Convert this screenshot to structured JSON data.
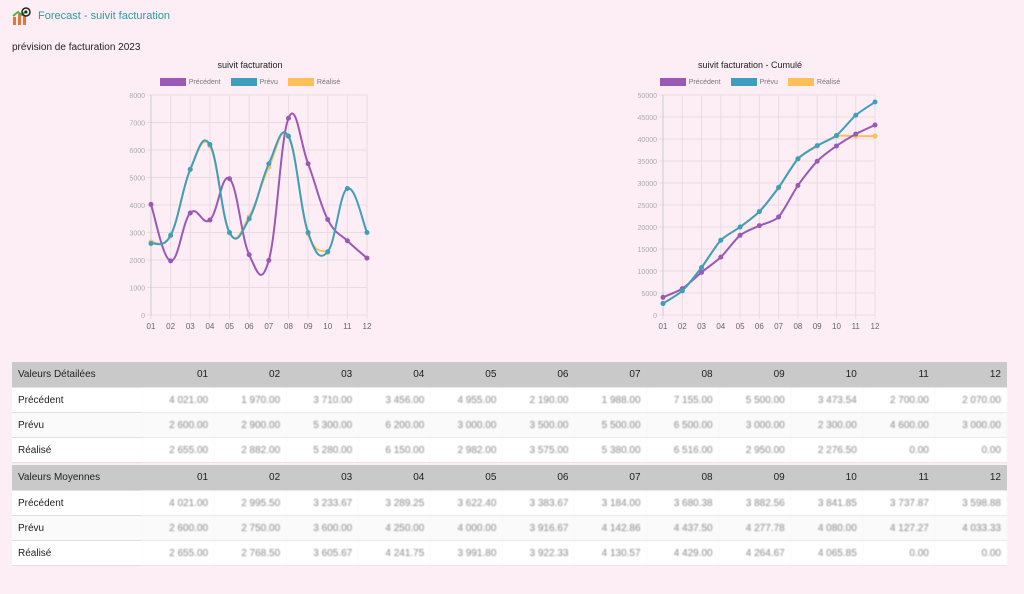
{
  "header": {
    "title": "Forecast - suivit facturation",
    "subtitle": "prévision de facturation 2023"
  },
  "colors": {
    "precedent": "#9b59b6",
    "prevu": "#3e9fbd",
    "realise": "#fbc05a"
  },
  "chart_data": [
    {
      "type": "line",
      "title": "suivit facturation",
      "categories": [
        "01",
        "02",
        "03",
        "04",
        "05",
        "06",
        "07",
        "08",
        "09",
        "10",
        "11",
        "12"
      ],
      "ylim": [
        0,
        8000
      ],
      "yticks": [
        "0",
        "1000",
        "2000",
        "3000",
        "4000",
        "5000",
        "6000",
        "7000",
        "8000"
      ],
      "series": [
        {
          "name": "Précédent",
          "values": [
            4021,
            1970,
            3710,
            3456,
            4955,
            2190,
            1988,
            7155,
            5500,
            3473.54,
            2700,
            2070
          ]
        },
        {
          "name": "Prévu",
          "values": [
            2600,
            2900,
            5300,
            6200,
            3000,
            3500,
            5500,
            6500,
            3000,
            2300,
            4600,
            3000
          ]
        },
        {
          "name": "Réalisé",
          "values": [
            2655,
            2882,
            5280,
            6150,
            2982,
            3575,
            5380,
            6516,
            2950,
            2276.5,
            null,
            null
          ]
        }
      ]
    },
    {
      "type": "line",
      "title": "suivit facturation - Cumulé",
      "categories": [
        "01",
        "02",
        "03",
        "04",
        "05",
        "06",
        "07",
        "08",
        "09",
        "10",
        "11",
        "12"
      ],
      "ylim": [
        0,
        50000
      ],
      "yticks": [
        "0",
        "5000",
        "10000",
        "15000",
        "20000",
        "25000",
        "30000",
        "35000",
        "40000",
        "45000",
        "50000"
      ],
      "series": [
        {
          "name": "Précédent",
          "values": [
            4021,
            5991,
            9701,
            13157,
            18112,
            20302,
            22290,
            29445,
            34945,
            38418.54,
            41118.54,
            43188.54
          ]
        },
        {
          "name": "Prévu",
          "values": [
            2600,
            5500,
            10800,
            17000,
            20000,
            23500,
            29000,
            35500,
            38500,
            40800,
            45400,
            48400
          ]
        },
        {
          "name": "Réalisé",
          "values": [
            2655,
            5537,
            10817,
            16967,
            19949,
            23524,
            28904,
            35420,
            38370,
            40646.5,
            40646.5,
            40646.5
          ]
        }
      ]
    }
  ],
  "tables": [
    {
      "title": "Valeurs Détailées",
      "months": [
        "01",
        "02",
        "03",
        "04",
        "05",
        "06",
        "07",
        "08",
        "09",
        "10",
        "11",
        "12"
      ],
      "rows": [
        {
          "label": "Précédent",
          "values": [
            "4 021.00",
            "1 970.00",
            "3 710.00",
            "3 456.00",
            "4 955.00",
            "2 190.00",
            "1 988.00",
            "7 155.00",
            "5 500.00",
            "3 473.54",
            "2 700.00",
            "2 070.00"
          ]
        },
        {
          "label": "Prévu",
          "values": [
            "2 600.00",
            "2 900.00",
            "5 300.00",
            "6 200.00",
            "3 000.00",
            "3 500.00",
            "5 500.00",
            "6 500.00",
            "3 000.00",
            "2 300.00",
            "4 600.00",
            "3 000.00"
          ]
        },
        {
          "label": "Réalisé",
          "values": [
            "2 655.00",
            "2 882.00",
            "5 280.00",
            "6 150.00",
            "2 982.00",
            "3 575.00",
            "5 380.00",
            "6 516.00",
            "2 950.00",
            "2 276.50",
            "0.00",
            "0.00"
          ]
        }
      ]
    },
    {
      "title": "Valeurs Moyennes",
      "months": [
        "01",
        "02",
        "03",
        "04",
        "05",
        "06",
        "07",
        "08",
        "09",
        "10",
        "11",
        "12"
      ],
      "rows": [
        {
          "label": "Précédent",
          "values": [
            "4 021.00",
            "2 995.50",
            "3 233.67",
            "3 289.25",
            "3 622.40",
            "3 383.67",
            "3 184.00",
            "3 680.38",
            "3 882.56",
            "3 841.85",
            "3 737.87",
            "3 598.88"
          ]
        },
        {
          "label": "Prévu",
          "values": [
            "2 600.00",
            "2 750.00",
            "3 600.00",
            "4 250.00",
            "4 000.00",
            "3 916.67",
            "4 142.86",
            "4 437.50",
            "4 277.78",
            "4 080.00",
            "4 127.27",
            "4 033.33"
          ]
        },
        {
          "label": "Réalisé",
          "values": [
            "2 655.00",
            "2 768.50",
            "3 605.67",
            "4 241.75",
            "3 991.80",
            "3 922.33",
            "4 130.57",
            "4 429.00",
            "4 264.67",
            "4 065.85",
            "0.00",
            "0.00"
          ]
        }
      ]
    }
  ]
}
